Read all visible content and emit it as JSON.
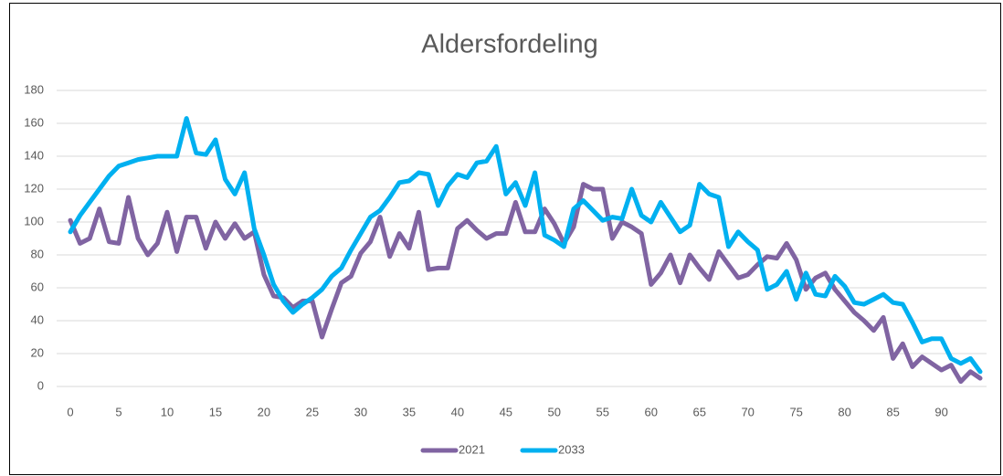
{
  "chart_data": {
    "type": "line",
    "title": "Aldersfordeling",
    "x": [
      0,
      1,
      2,
      3,
      4,
      5,
      6,
      7,
      8,
      9,
      10,
      11,
      12,
      13,
      14,
      15,
      16,
      17,
      18,
      19,
      20,
      21,
      22,
      23,
      24,
      25,
      26,
      27,
      28,
      29,
      30,
      31,
      32,
      33,
      34,
      35,
      36,
      37,
      38,
      39,
      40,
      41,
      42,
      43,
      44,
      45,
      46,
      47,
      48,
      49,
      50,
      51,
      52,
      53,
      54,
      55,
      56,
      57,
      58,
      59,
      60,
      61,
      62,
      63,
      64,
      65,
      66,
      67,
      68,
      69,
      70,
      71,
      72,
      73,
      74,
      75,
      76,
      77,
      78,
      79,
      80,
      81,
      82,
      83,
      84,
      85,
      86,
      87,
      88,
      89,
      90,
      91,
      92,
      93,
      94
    ],
    "series": [
      {
        "name": "2021",
        "color": "#8064a2",
        "values": [
          101,
          87,
          90,
          108,
          88,
          87,
          115,
          90,
          80,
          87,
          106,
          82,
          103,
          103,
          84,
          100,
          90,
          99,
          90,
          94,
          68,
          55,
          54,
          48,
          52,
          52,
          30,
          47,
          63,
          67,
          81,
          88,
          103,
          79,
          93,
          84,
          106,
          71,
          72,
          72,
          96,
          101,
          95,
          90,
          93,
          93,
          112,
          94,
          94,
          108,
          99,
          87,
          97,
          123,
          120,
          120,
          90,
          100,
          97,
          93,
          62,
          69,
          80,
          63,
          80,
          72,
          65,
          82,
          74,
          66,
          68,
          74,
          79,
          78,
          87,
          77,
          59,
          66,
          69,
          59,
          52,
          45,
          40,
          34,
          42,
          17,
          26,
          12,
          18,
          14,
          10,
          13,
          3,
          9,
          5
        ]
      },
      {
        "name": "2033",
        "color": "#00b0f0",
        "values": [
          94,
          104,
          112,
          120,
          128,
          134,
          136,
          138,
          139,
          140,
          140,
          140,
          163,
          142,
          141,
          150,
          126,
          117,
          130,
          96,
          80,
          62,
          52,
          45,
          50,
          54,
          59,
          67,
          72,
          83,
          93,
          103,
          107,
          115,
          124,
          125,
          130,
          129,
          110,
          122,
          129,
          127,
          136,
          137,
          146,
          117,
          124,
          110,
          130,
          92,
          89,
          85,
          108,
          113,
          107,
          101,
          103,
          102,
          120,
          104,
          100,
          112,
          103,
          94,
          98,
          123,
          117,
          115,
          85,
          94,
          88,
          83,
          59,
          62,
          70,
          53,
          69,
          56,
          55,
          67,
          61,
          51,
          50,
          53,
          56,
          51,
          50,
          39,
          27,
          29,
          29,
          17,
          14,
          17,
          9
        ]
      }
    ],
    "xlim": [
      0,
      94
    ],
    "xticks": [
      0,
      5,
      10,
      15,
      20,
      25,
      30,
      35,
      40,
      45,
      50,
      55,
      60,
      65,
      70,
      75,
      80,
      85,
      90
    ],
    "ylim": [
      0,
      180
    ],
    "yticks": [
      0,
      20,
      40,
      60,
      80,
      100,
      120,
      140,
      160,
      180
    ],
    "grid": true,
    "legend": "bottom"
  }
}
